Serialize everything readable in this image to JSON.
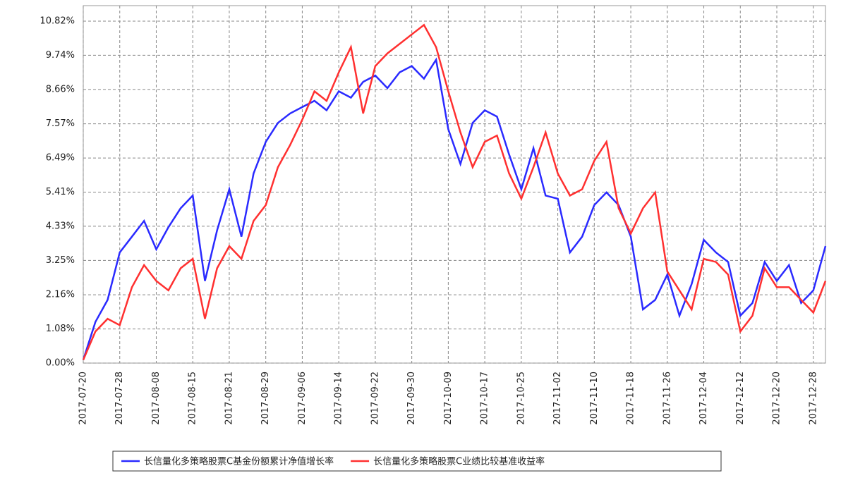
{
  "chart_data": {
    "type": "line",
    "categories": [
      "2017-07-20",
      null,
      null,
      "2017-07-28",
      null,
      null,
      "2017-08-08",
      null,
      null,
      "2017-08-15",
      null,
      null,
      "2017-08-21",
      null,
      null,
      "2017-08-29",
      null,
      null,
      "2017-09-06",
      null,
      null,
      "2017-09-14",
      null,
      null,
      "2017-09-22",
      null,
      null,
      "2017-09-30",
      null,
      null,
      "2017-10-09",
      null,
      null,
      "2017-10-17",
      null,
      null,
      "2017-10-25",
      null,
      null,
      "2017-11-02",
      null,
      null,
      "2017-11-10",
      null,
      null,
      "2017-11-18",
      null,
      null,
      "2017-11-26",
      null,
      null,
      "2017-12-04",
      null,
      null,
      "2017-12-12",
      null,
      null,
      "2017-12-20",
      null,
      null,
      "2017-12-28",
      null
    ],
    "series": [
      {
        "name": "长信量化多策略股票C基金份额累计净值增长率",
        "color": "#2a2aff",
        "values": [
          0.1,
          1.3,
          2.0,
          3.5,
          4.0,
          4.5,
          3.6,
          4.3,
          4.9,
          5.3,
          2.6,
          4.2,
          5.5,
          4.0,
          6.0,
          7.0,
          7.6,
          7.9,
          8.1,
          8.3,
          8.0,
          8.6,
          8.4,
          8.9,
          9.1,
          8.7,
          9.2,
          9.4,
          9.0,
          9.6,
          7.4,
          6.3,
          7.6,
          8.0,
          7.8,
          6.6,
          5.5,
          6.8,
          5.3,
          5.2,
          3.5,
          4.0,
          5.0,
          5.4,
          5.0,
          4.0,
          1.7,
          2.0,
          2.8,
          1.5,
          2.5,
          3.9,
          3.5,
          3.2,
          1.5,
          1.9,
          3.2,
          2.6,
          3.1,
          1.9,
          2.3,
          3.7
        ]
      },
      {
        "name": "长信量化多策略股票C业绩比较基准收益率",
        "color": "#ff3030",
        "values": [
          0.1,
          1.0,
          1.4,
          1.2,
          2.4,
          3.1,
          2.6,
          2.3,
          3.0,
          3.3,
          1.4,
          3.0,
          3.7,
          3.3,
          4.5,
          5.0,
          6.2,
          6.9,
          7.7,
          8.6,
          8.3,
          9.2,
          10.0,
          7.9,
          9.4,
          9.8,
          10.1,
          10.4,
          10.7,
          10.0,
          8.6,
          7.3,
          6.2,
          7.0,
          7.2,
          6.0,
          5.2,
          6.2,
          7.3,
          6.0,
          5.3,
          5.5,
          6.4,
          7.0,
          4.9,
          4.1,
          4.9,
          5.4,
          2.9,
          2.3,
          1.7,
          3.3,
          3.2,
          2.8,
          1.0,
          1.5,
          3.0,
          2.4,
          2.4,
          2.0,
          1.6,
          2.6
        ]
      }
    ],
    "ylim": [
      0,
      10.82
    ],
    "yticks": [
      {
        "value": 0,
        "label": "0.00%"
      },
      {
        "value": 1.08,
        "label": "1.08%"
      },
      {
        "value": 2.16,
        "label": "2.16%"
      },
      {
        "value": 3.25,
        "label": "3.25%"
      },
      {
        "value": 4.33,
        "label": "4.33%"
      },
      {
        "value": 5.41,
        "label": "5.41%"
      },
      {
        "value": 6.49,
        "label": "6.49%"
      },
      {
        "value": 7.57,
        "label": "7.57%"
      },
      {
        "value": 8.66,
        "label": "8.66%"
      },
      {
        "value": 9.74,
        "label": "9.74%"
      },
      {
        "value": 10.82,
        "label": "10.82%"
      }
    ],
    "grid": true,
    "legend": "bottom"
  }
}
